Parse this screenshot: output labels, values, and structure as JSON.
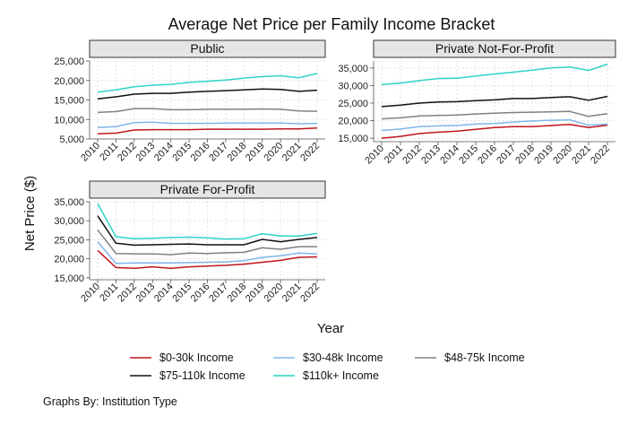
{
  "chart_data": {
    "type": "line",
    "title": "Average Net Price per Family Income Bracket",
    "xlabel": "Year",
    "ylabel": "Net Price ($)",
    "caption": "Graphs By: Institution Type",
    "grid": true,
    "legend_position": "bottom",
    "x": [
      "2010",
      "2011",
      "2012",
      "2013",
      "2014",
      "2015",
      "2016",
      "2017",
      "2018",
      "2019",
      "2020",
      "2021",
      "2022"
    ],
    "legend": [
      {
        "name": "$0-30k Income",
        "color": "#c0161c"
      },
      {
        "name": "$30-48k Income",
        "color": "#7fb6e8"
      },
      {
        "name": "$48-75k Income",
        "color": "#808080"
      },
      {
        "name": "$75-110k Income",
        "color": "#111111"
      },
      {
        "name": "$110k+ Income",
        "color": "#2ed3c6"
      }
    ],
    "panels": [
      {
        "name": "Public",
        "ylim": [
          5000,
          25000
        ],
        "yticks": [
          5000,
          10000,
          15000,
          20000,
          25000
        ],
        "ytick_labels": [
          "5,000",
          "10,000",
          "15,000",
          "20,000",
          "25,000"
        ],
        "series": [
          {
            "name": "$0-30k Income",
            "color": "#c0161c",
            "values": [
              6300,
              6500,
              7300,
              7400,
              7400,
              7400,
              7500,
              7500,
              7500,
              7500,
              7600,
              7600,
              7800
            ]
          },
          {
            "name": "$30-48k Income",
            "color": "#7fb6e8",
            "values": [
              7900,
              8200,
              9200,
              9300,
              9000,
              9000,
              9000,
              9100,
              9100,
              9100,
              9100,
              8900,
              9000
            ]
          },
          {
            "name": "$48-75k Income",
            "color": "#808080",
            "values": [
              11800,
              12000,
              12800,
              12800,
              12500,
              12500,
              12600,
              12600,
              12600,
              12700,
              12600,
              12200,
              12100
            ]
          },
          {
            "name": "$75-110k Income",
            "color": "#111111",
            "values": [
              15300,
              15800,
              16500,
              16700,
              16700,
              17000,
              17200,
              17400,
              17600,
              17800,
              17700,
              17200,
              17500
            ]
          },
          {
            "name": "$110k+ Income",
            "color": "#2ed3c6",
            "values": [
              17000,
              17600,
              18400,
              18800,
              19000,
              19500,
              19800,
              20100,
              20600,
              21000,
              21200,
              20700,
              21800
            ]
          }
        ]
      },
      {
        "name": "Private Not-For-Profit",
        "ylim": [
          14000,
          37000
        ],
        "yticks": [
          15000,
          20000,
          25000,
          30000,
          35000
        ],
        "ytick_labels": [
          "15,000",
          "20,000",
          "25,000",
          "30,000",
          "35,000"
        ],
        "series": [
          {
            "name": "$0-30k Income",
            "color": "#c0161c",
            "values": [
              15000,
              15500,
              16300,
              16700,
              17000,
              17500,
              18000,
              18300,
              18300,
              18600,
              18900,
              18000,
              18700
            ]
          },
          {
            "name": "$30-48k Income",
            "color": "#7fb6e8",
            "values": [
              17200,
              17600,
              18300,
              18500,
              18600,
              19000,
              19200,
              19600,
              19900,
              20100,
              20200,
              18700,
              19000
            ]
          },
          {
            "name": "$48-75k Income",
            "color": "#808080",
            "values": [
              20500,
              20800,
              21300,
              21500,
              21600,
              21900,
              22100,
              22300,
              22400,
              22500,
              22600,
              21200,
              22000
            ]
          },
          {
            "name": "$75-110k Income",
            "color": "#111111",
            "values": [
              24000,
              24400,
              25000,
              25300,
              25400,
              25700,
              25900,
              26300,
              26300,
              26600,
              26800,
              25800,
              26900
            ]
          },
          {
            "name": "$110k+ Income",
            "color": "#2ed3c6",
            "values": [
              30300,
              30700,
              31400,
              32000,
              32100,
              32700,
              33300,
              33800,
              34400,
              35000,
              35300,
              34300,
              36100
            ]
          }
        ]
      },
      {
        "name": "Private For-Profit",
        "ylim": [
          14500,
          35000
        ],
        "yticks": [
          15000,
          20000,
          25000,
          30000,
          35000
        ],
        "ytick_labels": [
          "15,000",
          "20,000",
          "25,000",
          "30,000",
          "35,000"
        ],
        "series": [
          {
            "name": "$0-30k Income",
            "color": "#c0161c",
            "values": [
              22200,
              17700,
              17500,
              17900,
              17500,
              17900,
              18100,
              18300,
              18600,
              19100,
              19600,
              20400,
              20500
            ]
          },
          {
            "name": "$30-48k Income",
            "color": "#7fb6e8",
            "values": [
              24500,
              18800,
              18900,
              18900,
              18900,
              19000,
              19100,
              19200,
              19500,
              20400,
              20800,
              21500,
              21300
            ]
          },
          {
            "name": "$48-75k Income",
            "color": "#808080",
            "values": [
              27600,
              21400,
              21300,
              21300,
              21100,
              21500,
              21400,
              21600,
              21700,
              22900,
              22500,
              23200,
              23200
            ]
          },
          {
            "name": "$75-110k Income",
            "color": "#111111",
            "values": [
              31300,
              24100,
              23600,
              23700,
              23800,
              23900,
              23700,
              23700,
              23700,
              25100,
              24500,
              25100,
              25600
            ]
          },
          {
            "name": "$110k+ Income",
            "color": "#2ed3c6",
            "values": [
              34500,
              25800,
              25300,
              25400,
              25600,
              25700,
              25500,
              25200,
              25300,
              26600,
              26000,
              26000,
              26700
            ]
          }
        ]
      }
    ]
  }
}
